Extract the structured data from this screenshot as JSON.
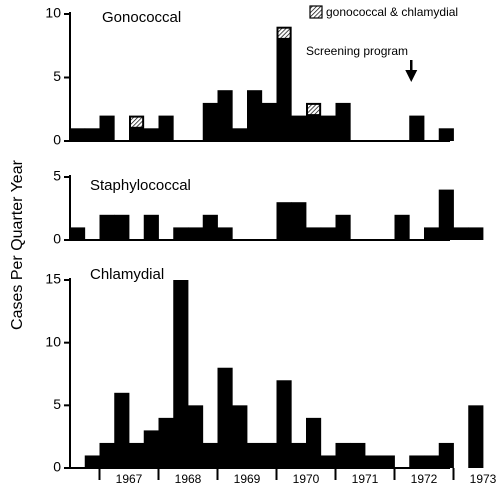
{
  "colors": {
    "bar": "#000000",
    "axis": "#000000",
    "background": "#ffffff",
    "hatch": "#ffffff"
  },
  "chart_data": {
    "type": "bar",
    "ylabel": "Cases Per Quarter Year",
    "x_tick_labels": [
      "1967",
      "1968",
      "1969",
      "1970",
      "1971",
      "1972",
      "1973"
    ],
    "panels": [
      {
        "name": "Gonococcal",
        "ylim": [
          0,
          10
        ],
        "y_ticks": [
          0,
          5,
          10
        ],
        "categories": [
          "1966 Q3",
          "1966 Q4",
          "1967 Q1",
          "1967 Q2",
          "1967 Q3",
          "1967 Q4",
          "1968 Q1",
          "1968 Q2",
          "1968 Q3",
          "1968 Q4",
          "1969 Q1",
          "1969 Q2",
          "1969 Q3",
          "1969 Q4",
          "1970 Q1",
          "1970 Q2",
          "1970 Q3",
          "1970 Q4",
          "1971 Q1",
          "1971 Q2",
          "1971 Q3",
          "1971 Q4",
          "1972 Q1",
          "1972 Q2",
          "1972 Q3",
          "1972 Q4",
          "1973 Q1"
        ],
        "values": [
          1,
          1,
          2,
          0,
          2,
          1,
          2,
          0,
          0,
          3,
          4,
          1,
          4,
          3,
          9,
          2,
          3,
          2,
          3,
          0,
          0,
          0,
          0,
          2,
          0,
          1,
          0
        ],
        "combined_values": [
          0,
          0,
          0,
          0,
          1,
          0,
          0,
          0,
          0,
          0,
          0,
          0,
          0,
          0,
          1,
          0,
          1,
          0,
          0,
          0,
          0,
          0,
          0,
          0,
          0,
          0,
          0
        ],
        "legend": "gonococcal & chlamydial",
        "annotation": "Screening program",
        "annotation_x": "1972 Q2"
      },
      {
        "name": "Staphylococcal",
        "ylim": [
          0,
          5
        ],
        "y_ticks": [
          0,
          5
        ],
        "categories": [
          "1966 Q3",
          "1966 Q4",
          "1967 Q1",
          "1967 Q2",
          "1967 Q3",
          "1967 Q4",
          "1968 Q1",
          "1968 Q2",
          "1968 Q3",
          "1968 Q4",
          "1969 Q1",
          "1969 Q2",
          "1969 Q3",
          "1969 Q4",
          "1970 Q1",
          "1970 Q2",
          "1970 Q3",
          "1970 Q4",
          "1971 Q1",
          "1971 Q2",
          "1971 Q3",
          "1971 Q4",
          "1972 Q1",
          "1972 Q2",
          "1972 Q3",
          "1972 Q4",
          "1973 Q1",
          "1973 Q2",
          "1973 Q3"
        ],
        "values": [
          1,
          0,
          2,
          2,
          0,
          2,
          0,
          1,
          1,
          2,
          1,
          0,
          0,
          0,
          3,
          3,
          1,
          1,
          2,
          0,
          0,
          0,
          2,
          0,
          1,
          4,
          1,
          1,
          0
        ]
      },
      {
        "name": "Chlamydial",
        "ylim": [
          0,
          15
        ],
        "y_ticks": [
          0,
          5,
          10,
          15
        ],
        "categories": [
          "1966 Q3",
          "1966 Q4",
          "1967 Q1",
          "1967 Q2",
          "1967 Q3",
          "1967 Q4",
          "1968 Q1",
          "1968 Q2",
          "1968 Q3",
          "1968 Q4",
          "1969 Q1",
          "1969 Q2",
          "1969 Q3",
          "1969 Q4",
          "1970 Q1",
          "1970 Q2",
          "1970 Q3",
          "1970 Q4",
          "1971 Q1",
          "1971 Q2",
          "1971 Q3",
          "1971 Q4",
          "1972 Q1",
          "1972 Q2",
          "1972 Q3",
          "1972 Q4",
          "1973 Q1",
          "1973 Q2",
          "1973 Q3"
        ],
        "values": [
          0,
          1,
          2,
          6,
          2,
          3,
          4,
          15,
          5,
          2,
          8,
          5,
          2,
          2,
          7,
          2,
          4,
          1,
          2,
          2,
          1,
          1,
          0,
          1,
          1,
          2,
          0,
          5,
          0
        ]
      }
    ]
  }
}
